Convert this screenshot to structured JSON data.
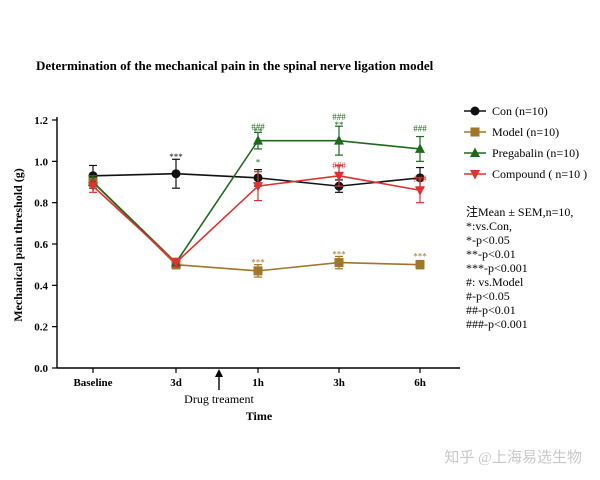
{
  "chart_data": {
    "type": "line",
    "title": "Determination of the mechanical pain in the spinal nerve ligation model",
    "xlabel": "Time",
    "ylabel": "Mechanical pain threshold (g)",
    "categories": [
      "Baseline",
      "3d",
      "1h",
      "3h",
      "6h"
    ],
    "ylim": [
      0.0,
      1.2
    ],
    "yticks": [
      "0.0",
      "0.2",
      "0.4",
      "0.6",
      "0.8",
      "1.0",
      "1.2"
    ],
    "grid": false,
    "legend_position": "right",
    "series": [
      {
        "name": "Con (n=10)",
        "color": "#111111",
        "marker": "circle",
        "values": [
          0.93,
          0.94,
          0.92,
          0.88,
          0.92
        ],
        "errors": [
          0.05,
          0.07,
          0.04,
          0.03,
          0.05
        ]
      },
      {
        "name": "Model (n=10)",
        "color": "#a0762a",
        "marker": "square",
        "values": [
          0.9,
          0.5,
          0.47,
          0.51,
          0.5
        ],
        "errors": [
          0.03,
          0.02,
          0.03,
          0.03,
          0.02
        ]
      },
      {
        "name": "Pregabalin (n=10)",
        "color": "#1b6b1b",
        "marker": "triangle-up",
        "values": [
          0.9,
          0.51,
          1.1,
          1.1,
          1.06
        ],
        "errors": [
          0.03,
          0.02,
          0.04,
          0.07,
          0.06
        ]
      },
      {
        "name": "Compound ( n=10 )",
        "color": "#e03030",
        "marker": "triangle-down",
        "values": [
          0.88,
          0.51,
          0.88,
          0.93,
          0.86
        ],
        "errors": [
          0.03,
          0.02,
          0.07,
          0.05,
          0.06
        ]
      }
    ],
    "annotations": [
      {
        "text": "***",
        "category": "3d",
        "y": 1.02,
        "color": "#111111"
      },
      {
        "text": "###",
        "category": "1h",
        "y": 1.165,
        "color": "#1b6b1b"
      },
      {
        "text": "**",
        "category": "1h",
        "y": 1.145,
        "color": "#1b6b1b"
      },
      {
        "text": "*",
        "category": "1h",
        "y": 0.995,
        "color": "#1b6b1b"
      },
      {
        "text": "###",
        "category": "3h",
        "y": 1.215,
        "color": "#1b6b1b"
      },
      {
        "text": "**",
        "category": "3h",
        "y": 1.175,
        "color": "#1b6b1b"
      },
      {
        "text": "###",
        "category": "3h",
        "y": 0.98,
        "color": "#e03030"
      },
      {
        "text": "###",
        "category": "6h",
        "y": 1.16,
        "color": "#1b6b1b"
      },
      {
        "text": "###",
        "category": "6h",
        "y": 0.915,
        "color": "#e03030"
      },
      {
        "text": "***",
        "category": "1h",
        "y": 0.51,
        "color": "#a0762a"
      },
      {
        "text": "***",
        "category": "3h",
        "y": 0.55,
        "color": "#a0762a"
      },
      {
        "text": "***",
        "category": "6h",
        "y": 0.54,
        "color": "#a0762a"
      }
    ],
    "drug_marker": {
      "label": "Drug treament"
    },
    "notes": [
      "注Mean ± SEM,n=10,",
      "*:vs.Con,",
      "*-p<0.05",
      "**-p<0.01",
      "***-p<0.001",
      "#: vs.Model",
      "#-p<0.05",
      "##-p<0.01",
      "###-p<0.001"
    ]
  },
  "watermark": "知乎 @上海易选生物"
}
